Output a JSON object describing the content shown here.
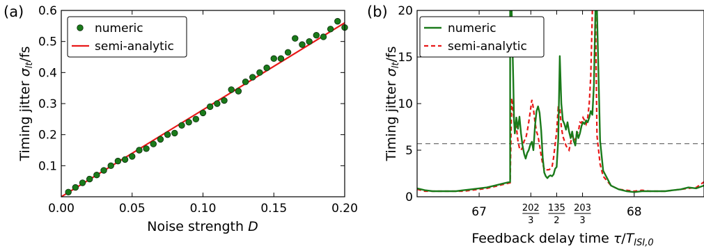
{
  "colors": {
    "numeric": "#1a7a1a",
    "numeric_edge": "#0b2b0b",
    "semi_analytic": "#e81818",
    "hline": "#6e6e6e"
  },
  "chart_data": [
    {
      "type": "scatter",
      "panel_label": "(a)",
      "xlabel": "Noise strength D",
      "ylabel": "Timing jitter σ_lt/fs",
      "xlim": [
        0,
        0.2
      ],
      "ylim": [
        0,
        0.6
      ],
      "x_ticks": [
        "0.00",
        "0.05",
        "0.10",
        "0.15",
        "0.20"
      ],
      "x_tick_values": [
        0,
        0.05,
        0.1,
        0.15,
        0.2
      ],
      "y_ticks": [
        "0.1",
        "0.2",
        "0.3",
        "0.4",
        "0.5",
        "0.6"
      ],
      "y_tick_values": [
        0.1,
        0.2,
        0.3,
        0.4,
        0.5,
        0.6
      ],
      "legend": [
        "numeric",
        "semi-analytic"
      ],
      "legend_position": "top-left",
      "grid": false,
      "series": [
        {
          "name": "numeric",
          "kind": "markers",
          "x": [
            0.005,
            0.01,
            0.015,
            0.02,
            0.025,
            0.03,
            0.035,
            0.04,
            0.045,
            0.05,
            0.055,
            0.06,
            0.065,
            0.07,
            0.075,
            0.08,
            0.085,
            0.09,
            0.095,
            0.1,
            0.105,
            0.11,
            0.115,
            0.12,
            0.125,
            0.13,
            0.135,
            0.14,
            0.145,
            0.15,
            0.155,
            0.16,
            0.165,
            0.17,
            0.175,
            0.18,
            0.185,
            0.19,
            0.195,
            0.2
          ],
          "y": [
            0.015,
            0.03,
            0.045,
            0.057,
            0.07,
            0.085,
            0.1,
            0.115,
            0.12,
            0.13,
            0.15,
            0.155,
            0.17,
            0.185,
            0.2,
            0.205,
            0.23,
            0.24,
            0.25,
            0.27,
            0.29,
            0.3,
            0.31,
            0.345,
            0.34,
            0.37,
            0.385,
            0.4,
            0.415,
            0.445,
            0.445,
            0.465,
            0.51,
            0.49,
            0.5,
            0.52,
            0.515,
            0.54,
            0.565,
            0.545
          ]
        },
        {
          "name": "semi-analytic",
          "kind": "line",
          "x": [
            0,
            0.2
          ],
          "y": [
            0,
            0.56
          ]
        }
      ]
    },
    {
      "type": "line",
      "panel_label": "(b)",
      "xlabel": "Feedback delay time τ/T_ISI,0",
      "ylabel": "Timing jitter σ_lt/fs",
      "xlim": [
        66.6,
        68.45
      ],
      "ylim": [
        0,
        20
      ],
      "x_ticks": [
        "67",
        "202/3",
        "135/2",
        "203/3",
        "68"
      ],
      "x_tick_values": [
        67,
        67.3333,
        67.5,
        67.6667,
        68
      ],
      "y_ticks": [
        "0",
        "5",
        "10",
        "15",
        "20"
      ],
      "y_tick_values": [
        0,
        5,
        10,
        15,
        20
      ],
      "hline": 5.7,
      "legend": [
        "numeric",
        "semi-analytic"
      ],
      "legend_position": "top-left",
      "grid": false,
      "series": [
        {
          "name": "numeric",
          "kind": "solid",
          "x": [
            66.6,
            66.65,
            66.7,
            66.75,
            66.8,
            66.85,
            66.9,
            66.95,
            67,
            67.05,
            67.1,
            67.15,
            67.2,
            67.2,
            67.21,
            67.22,
            67.225,
            67.23,
            67.24,
            67.25,
            67.26,
            67.27,
            67.28,
            67.29,
            67.3,
            67.31,
            67.32,
            67.33,
            67.34,
            67.35,
            67.36,
            67.37,
            67.38,
            67.39,
            67.4,
            67.41,
            67.42,
            67.43,
            67.44,
            67.45,
            67.46,
            67.47,
            67.48,
            67.49,
            67.5,
            67.51,
            67.52,
            67.53,
            67.54,
            67.55,
            67.56,
            67.57,
            67.58,
            67.59,
            67.6,
            67.61,
            67.62,
            67.63,
            67.64,
            67.65,
            67.66,
            67.67,
            67.68,
            67.69,
            67.7,
            67.71,
            67.72,
            67.73,
            67.74,
            67.75,
            67.76,
            67.78,
            67.8,
            67.85,
            67.9,
            67.95,
            68,
            68.05,
            68.1,
            68.15,
            68.2,
            68.25,
            68.3,
            68.35,
            68.4,
            68.45
          ],
          "y": [
            0.9,
            0.7,
            0.6,
            0.6,
            0.6,
            0.6,
            0.7,
            0.8,
            0.9,
            1.0,
            1.2,
            1.4,
            1.6,
            20,
            20,
            12.5,
            8.2,
            6.8,
            8.5,
            7.3,
            8.6,
            6.8,
            5.5,
            4.6,
            4.1,
            4.7,
            5.0,
            5.6,
            5.9,
            5.0,
            7.6,
            9.2,
            9.7,
            9.0,
            7.1,
            4.2,
            2.6,
            2.2,
            2.0,
            2.2,
            2.3,
            2.2,
            2.4,
            3.0,
            3.2,
            6.2,
            15.1,
            10.0,
            8.2,
            7.8,
            7.2,
            8.0,
            7.0,
            6.3,
            7.0,
            6.0,
            5.5,
            7.0,
            6.3,
            6.8,
            7.6,
            8.0,
            7.8,
            8.2,
            8.0,
            8.5,
            9.2,
            8.8,
            12.0,
            20,
            20,
            6.0,
            2.8,
            1.2,
            0.8,
            0.6,
            0.5,
            0.6,
            0.6,
            0.6,
            0.6,
            0.7,
            0.8,
            1.0,
            0.9,
            1.2
          ]
        },
        {
          "name": "semi-analytic",
          "kind": "dashed",
          "x": [
            66.6,
            66.65,
            66.7,
            66.75,
            66.8,
            66.85,
            66.9,
            66.95,
            67,
            67.05,
            67.1,
            67.15,
            67.2,
            67.21,
            67.22,
            67.23,
            67.24,
            67.25,
            67.26,
            67.27,
            67.28,
            67.29,
            67.3,
            67.31,
            67.32,
            67.33,
            67.34,
            67.35,
            67.36,
            67.37,
            67.38,
            67.39,
            67.4,
            67.41,
            67.42,
            67.43,
            67.44,
            67.45,
            67.46,
            67.47,
            67.48,
            67.49,
            67.5,
            67.51,
            67.52,
            67.53,
            67.54,
            67.55,
            67.56,
            67.57,
            67.58,
            67.59,
            67.6,
            67.61,
            67.62,
            67.63,
            67.64,
            67.65,
            67.66,
            67.67,
            67.68,
            67.69,
            67.7,
            67.71,
            67.72,
            67.73,
            67.74,
            67.75,
            67.76,
            67.78,
            67.8,
            67.85,
            67.9,
            67.95,
            68,
            68.05,
            68.1,
            68.15,
            68.2,
            68.25,
            68.3,
            68.35,
            68.4,
            68.45
          ],
          "y": [
            0.8,
            0.6,
            0.6,
            0.6,
            0.6,
            0.6,
            0.6,
            0.7,
            0.8,
            0.9,
            1.1,
            1.3,
            1.5,
            10.6,
            9.0,
            7.3,
            7.5,
            6.0,
            5.2,
            5.0,
            5.3,
            6.0,
            6.2,
            7.0,
            8.0,
            9.2,
            10.4,
            9.5,
            8.0,
            7.0,
            6.5,
            5.5,
            4.4,
            3.5,
            3.0,
            2.8,
            2.9,
            2.9,
            3.0,
            3.2,
            4.2,
            5.6,
            7.0,
            9.6,
            9.5,
            7.5,
            6.5,
            6.0,
            5.5,
            5.2,
            5.0,
            5.8,
            6.6,
            6.0,
            6.2,
            6.8,
            7.0,
            8.0,
            7.9,
            8.5,
            8.2,
            7.8,
            8.5,
            10.0,
            13.0,
            20,
            20,
            20,
            6.6,
            3.5,
            2.2,
            1.2,
            0.8,
            0.7,
            0.6,
            0.7,
            0.6,
            0.6,
            0.6,
            0.7,
            0.8,
            0.9,
            1.0,
            1.6
          ]
        }
      ]
    }
  ]
}
